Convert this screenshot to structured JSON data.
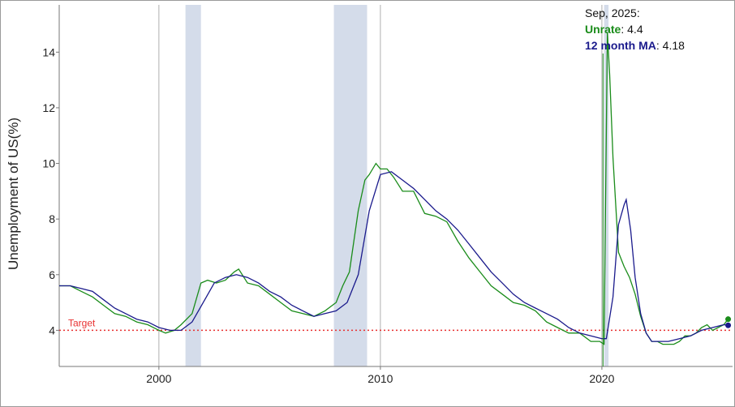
{
  "chart_data": {
    "type": "line",
    "title": "",
    "xlabel": "",
    "ylabel": "Unemployment of US(%)",
    "xlim": [
      1995.5,
      2025.9
    ],
    "ylim": [
      2.7,
      15.7
    ],
    "x_ticks": [
      2000,
      2010,
      2020
    ],
    "y_ticks": [
      4,
      6,
      8,
      10,
      12,
      14
    ],
    "grid": false,
    "colors": {
      "unrate": "#1a8c1a",
      "ma": "#1a1a8c",
      "target": "#e83030",
      "recession": "#d4dcea",
      "vline": "#b0b0b0"
    },
    "target": {
      "label": "Target",
      "value": 4.0
    },
    "recessions": [
      [
        2001.2,
        2001.9
      ],
      [
        2007.9,
        2009.4
      ],
      [
        2020.1,
        2020.3
      ]
    ],
    "vlines": [
      2000,
      2010,
      2020
    ],
    "series": [
      {
        "name": "Unrate",
        "x": [
          1995.5,
          1996,
          1996.5,
          1997,
          1997.5,
          1998,
          1998.5,
          1999,
          1999.5,
          2000,
          2000.3,
          2000.7,
          2001,
          2001.5,
          2001.9,
          2002.2,
          2002.6,
          2003,
          2003.4,
          2003.6,
          2004,
          2004.5,
          2005,
          2005.5,
          2006,
          2006.5,
          2007,
          2007.5,
          2008,
          2008.3,
          2008.6,
          2009,
          2009.3,
          2009.5,
          2009.8,
          2010,
          2010.3,
          2010.6,
          2011,
          2011.5,
          2012,
          2012.5,
          2013,
          2013.5,
          2014,
          2014.5,
          2015,
          2015.5,
          2016,
          2016.5,
          2017,
          2017.5,
          2018,
          2018.5,
          2019,
          2019.5,
          2019.9,
          2020.1,
          2020.25,
          2020.35,
          2020.5,
          2020.75,
          2021,
          2021.25,
          2021.5,
          2021.75,
          2022,
          2022.25,
          2022.5,
          2022.75,
          2023,
          2023.25,
          2023.5,
          2023.75,
          2024,
          2024.25,
          2024.5,
          2024.75,
          2025,
          2025.25,
          2025.5,
          2025.7
        ],
        "values": [
          5.6,
          5.6,
          5.4,
          5.2,
          4.9,
          4.6,
          4.5,
          4.3,
          4.2,
          4.0,
          3.9,
          4.0,
          4.2,
          4.6,
          5.7,
          5.8,
          5.7,
          5.8,
          6.1,
          6.2,
          5.7,
          5.6,
          5.3,
          5.0,
          4.7,
          4.6,
          4.5,
          4.7,
          5.0,
          5.6,
          6.1,
          8.3,
          9.4,
          9.6,
          10.0,
          9.8,
          9.8,
          9.5,
          9.0,
          9.0,
          8.2,
          8.1,
          7.9,
          7.2,
          6.6,
          6.1,
          5.6,
          5.3,
          5.0,
          4.9,
          4.7,
          4.3,
          4.1,
          3.9,
          3.9,
          3.6,
          3.6,
          3.5,
          14.7,
          13.2,
          10.2,
          6.8,
          6.3,
          5.9,
          5.3,
          4.5,
          3.9,
          3.6,
          3.6,
          3.5,
          3.5,
          3.5,
          3.6,
          3.8,
          3.8,
          3.9,
          4.1,
          4.2,
          4.0,
          4.1,
          4.2,
          4.4
        ]
      },
      {
        "name": "12 month MA",
        "x": [
          1995.5,
          1996,
          1996.5,
          1997,
          1997.5,
          1998,
          1998.5,
          1999,
          1999.5,
          2000,
          2000.5,
          2001,
          2001.5,
          2002,
          2002.5,
          2003,
          2003.5,
          2004,
          2004.5,
          2005,
          2005.5,
          2006,
          2006.5,
          2007,
          2007.5,
          2008,
          2008.5,
          2009,
          2009.5,
          2010,
          2010.5,
          2011,
          2011.5,
          2012,
          2012.5,
          2013,
          2013.5,
          2014,
          2014.5,
          2015,
          2015.5,
          2016,
          2016.5,
          2017,
          2017.5,
          2018,
          2018.5,
          2019,
          2019.5,
          2020,
          2020.2,
          2020.5,
          2020.75,
          2021,
          2021.1,
          2021.3,
          2021.5,
          2021.75,
          2022,
          2022.25,
          2022.5,
          2023,
          2023.5,
          2024,
          2024.5,
          2025,
          2025.5,
          2025.7
        ],
        "values": [
          5.6,
          5.6,
          5.5,
          5.4,
          5.1,
          4.8,
          4.6,
          4.4,
          4.3,
          4.1,
          4.0,
          4.0,
          4.3,
          5.0,
          5.7,
          5.9,
          6.0,
          5.9,
          5.7,
          5.4,
          5.2,
          4.9,
          4.7,
          4.5,
          4.6,
          4.7,
          5.0,
          6.0,
          8.3,
          9.6,
          9.7,
          9.4,
          9.1,
          8.7,
          8.3,
          8.0,
          7.6,
          7.1,
          6.6,
          6.1,
          5.7,
          5.3,
          5.0,
          4.8,
          4.6,
          4.4,
          4.1,
          3.9,
          3.8,
          3.7,
          3.7,
          5.2,
          7.8,
          8.5,
          8.7,
          7.6,
          5.9,
          4.6,
          3.9,
          3.6,
          3.6,
          3.6,
          3.7,
          3.8,
          4.0,
          4.1,
          4.2,
          4.18
        ]
      }
    ],
    "annotation": {
      "date": "Sep, 2025:",
      "unrate_label": "Unrate",
      "unrate_value": ": 4.4",
      "ma_label": "12 month MA",
      "ma_value": ": 4.18",
      "x": 2025.7
    }
  }
}
